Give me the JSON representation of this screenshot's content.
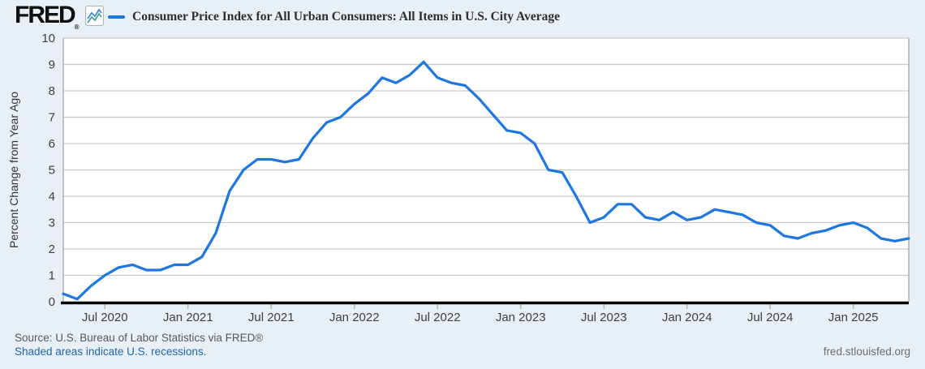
{
  "header": {
    "logo": "FRED",
    "logo_registered": "®",
    "series_title": "Consumer Price Index for All Urban Consumers: All Items in U.S. City Average"
  },
  "footer": {
    "source": "Source: U.S. Bureau of Labor Statistics via FRED®",
    "recessions_note": "Shaded areas indicate U.S. recessions.",
    "site": "fred.stlouisfed.org"
  },
  "colors": {
    "background": "#e8eff7",
    "plot_background": "#ffffff",
    "line": "#1d76e2",
    "gridline": "#c9c9c9",
    "plot_border": "#a6a6a6",
    "axis": "#000000",
    "tick": "#a9b9cc",
    "axis_text": "#3d3f42",
    "link": "#1b66ad"
  },
  "icons": {
    "fred_chart_icon": "sparkline-chart-icon"
  },
  "chart_data": {
    "type": "line",
    "title": "Consumer Price Index for All Urban Consumers: All Items in U.S. City Average",
    "xlabel": "",
    "ylabel": "Percent Change from Year Ago",
    "ylim": [
      0,
      10
    ],
    "y_ticks": [
      0,
      1,
      2,
      3,
      4,
      5,
      6,
      7,
      8,
      9,
      10
    ],
    "grid": "horizontal-only",
    "legend_position": "top-left",
    "frequency": "monthly",
    "x": [
      "2020-04",
      "2020-05",
      "2020-06",
      "2020-07",
      "2020-08",
      "2020-09",
      "2020-10",
      "2020-11",
      "2020-12",
      "2021-01",
      "2021-02",
      "2021-03",
      "2021-04",
      "2021-05",
      "2021-06",
      "2021-07",
      "2021-08",
      "2021-09",
      "2021-10",
      "2021-11",
      "2021-12",
      "2022-01",
      "2022-02",
      "2022-03",
      "2022-04",
      "2022-05",
      "2022-06",
      "2022-07",
      "2022-08",
      "2022-09",
      "2022-10",
      "2022-11",
      "2022-12",
      "2023-01",
      "2023-02",
      "2023-03",
      "2023-04",
      "2023-05",
      "2023-06",
      "2023-07",
      "2023-08",
      "2023-09",
      "2023-10",
      "2023-11",
      "2023-12",
      "2024-01",
      "2024-02",
      "2024-03",
      "2024-04",
      "2024-05",
      "2024-06",
      "2024-07",
      "2024-08",
      "2024-09",
      "2024-10",
      "2024-11",
      "2024-12",
      "2025-01",
      "2025-02",
      "2025-03",
      "2025-04",
      "2025-05"
    ],
    "series": [
      {
        "name": "Consumer Price Index for All Urban Consumers: All Items in U.S. City Average",
        "values": [
          0.3,
          0.1,
          0.6,
          1.0,
          1.3,
          1.4,
          1.2,
          1.2,
          1.4,
          1.4,
          1.7,
          2.6,
          4.2,
          5.0,
          5.4,
          5.4,
          5.3,
          5.4,
          6.2,
          6.8,
          7.0,
          7.5,
          7.9,
          8.5,
          8.3,
          8.6,
          9.1,
          8.5,
          8.3,
          8.2,
          7.7,
          7.1,
          6.5,
          6.4,
          6.0,
          5.0,
          4.9,
          4.0,
          3.0,
          3.2,
          3.7,
          3.7,
          3.2,
          3.1,
          3.4,
          3.1,
          3.2,
          3.5,
          3.4,
          3.3,
          3.0,
          2.9,
          2.5,
          2.4,
          2.6,
          2.7,
          2.9,
          3.0,
          2.8,
          2.4,
          2.3,
          2.4
        ]
      }
    ],
    "x_tick_marks": [
      {
        "date": "2020-07",
        "label": "Jul 2020"
      },
      {
        "date": "2021-01",
        "label": "Jan 2021"
      },
      {
        "date": "2021-07",
        "label": "Jul 2021"
      },
      {
        "date": "2022-01",
        "label": "Jan 2022"
      },
      {
        "date": "2022-07",
        "label": "Jul 2022"
      },
      {
        "date": "2023-01",
        "label": "Jan 2023"
      },
      {
        "date": "2023-07",
        "label": "Jul 2023"
      },
      {
        "date": "2024-01",
        "label": "Jan 2024"
      },
      {
        "date": "2024-07",
        "label": "Jul 2024"
      },
      {
        "date": "2025-01",
        "label": "Jan 2025"
      }
    ]
  }
}
